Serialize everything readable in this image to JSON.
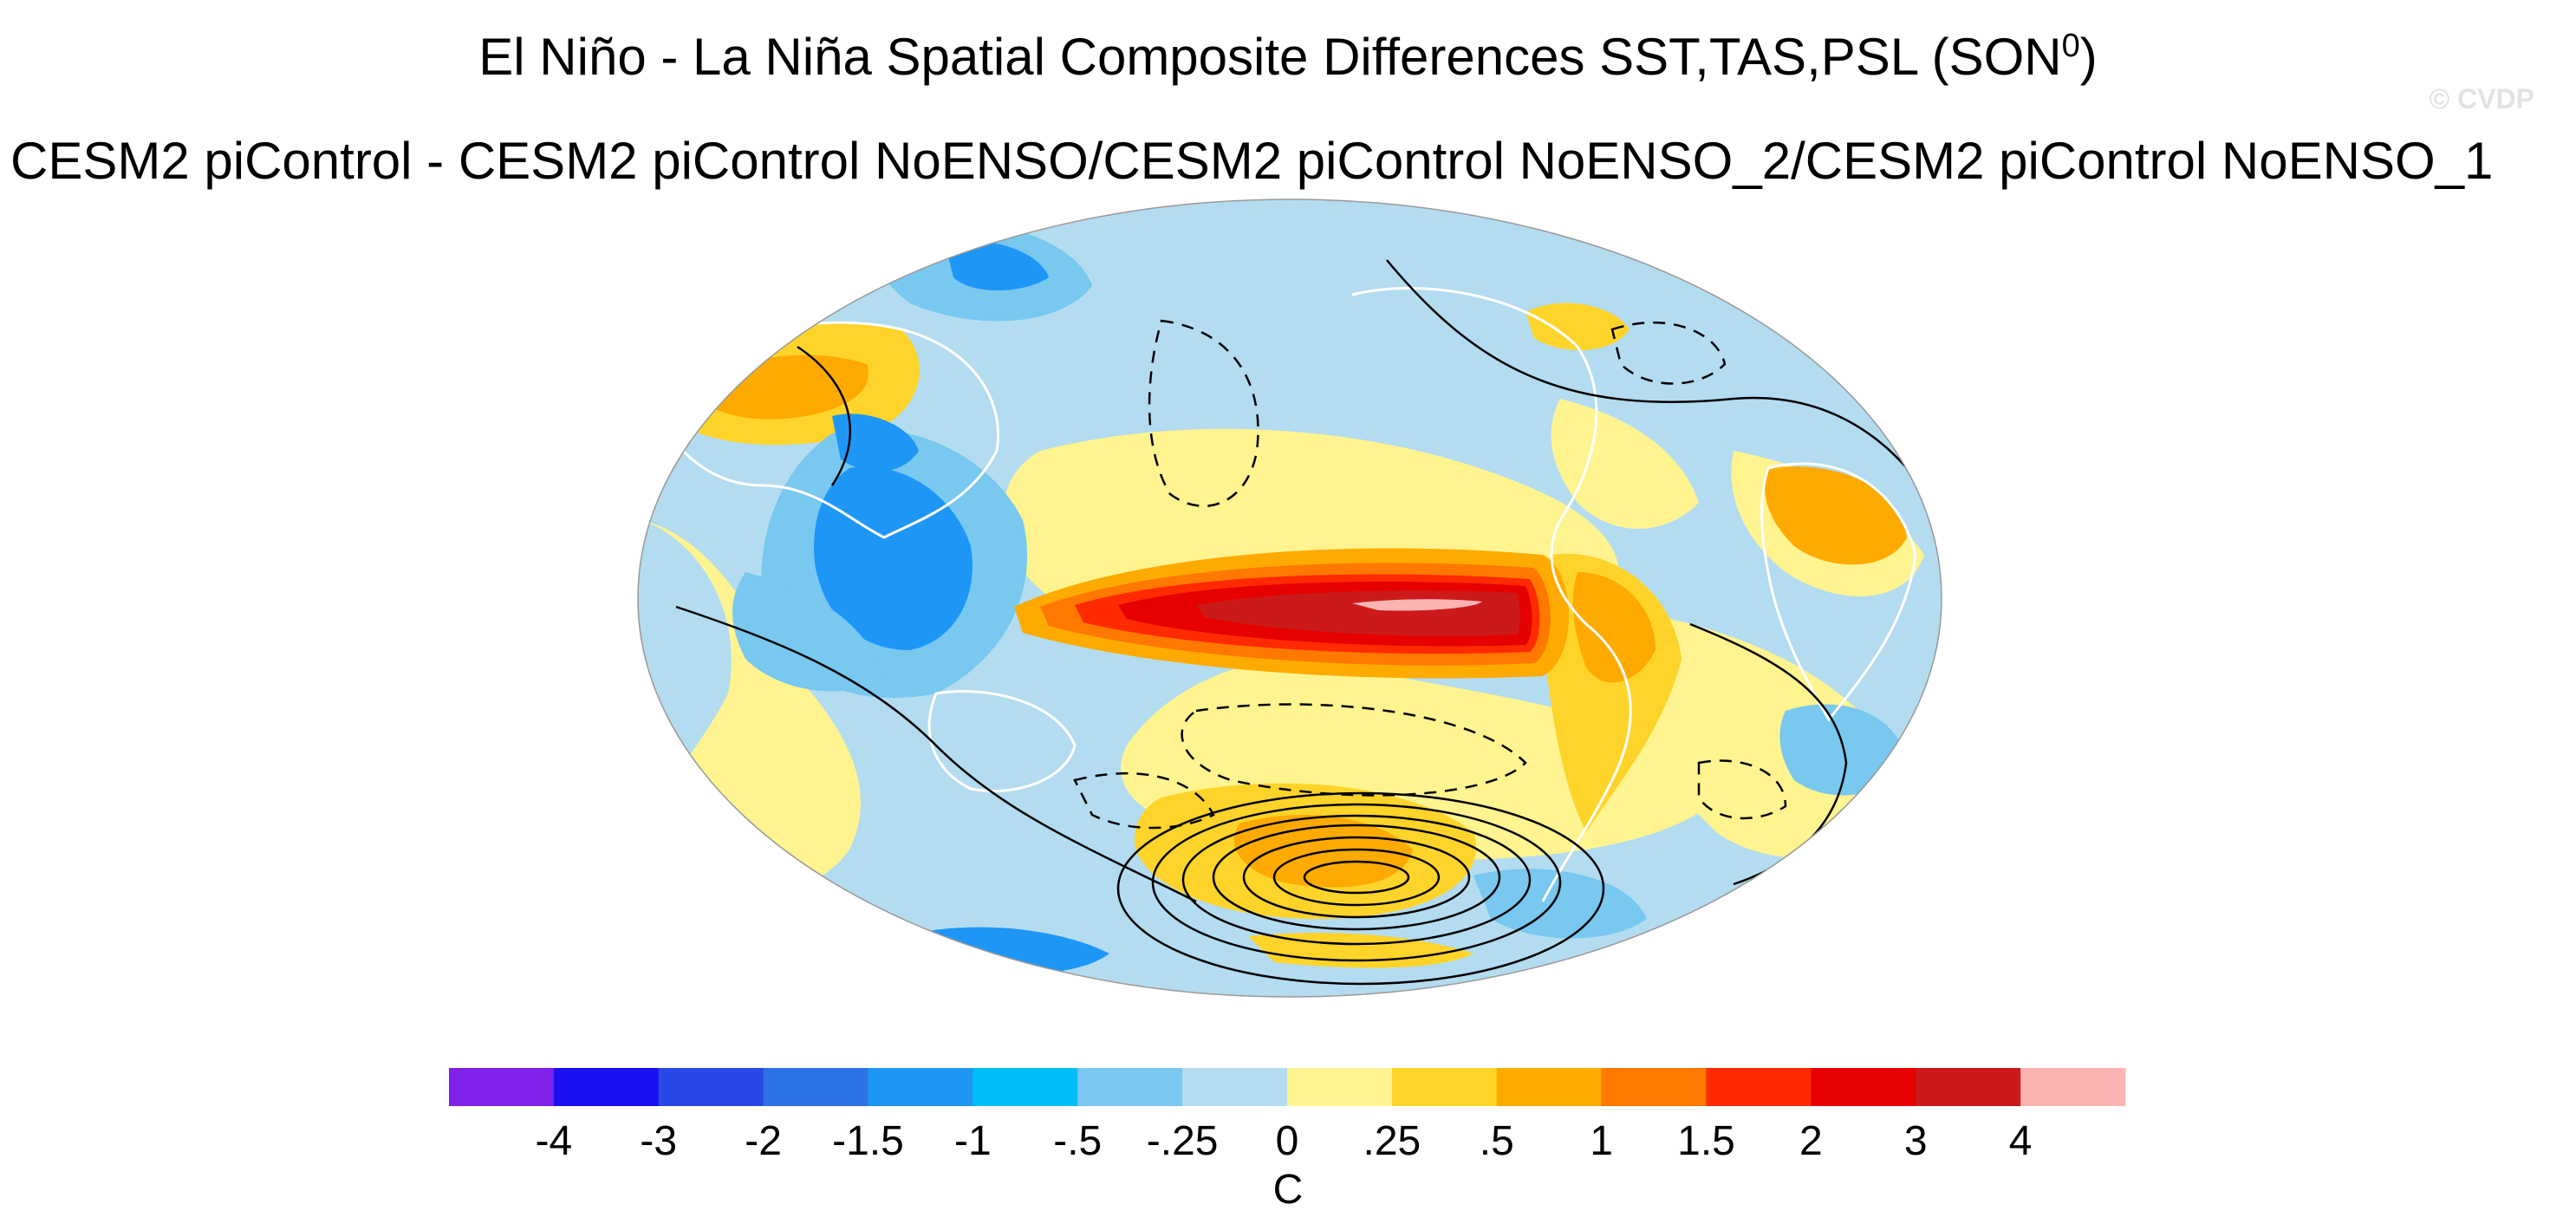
{
  "title": "El Niño - La Niña Spatial Composite Differences SST,TAS,PSL (SON",
  "title_superscript": "0",
  "title_close": ")",
  "subtitle": "CESM2 piControl - CESM2 piControl NoENSO/CESM2 piControl NoENSO_2/CESM2 piControl NoENSO_1",
  "watermark": "© CVDP",
  "colors": {
    "ocean_base": "#b4dcf0",
    "land_outline": "#ffffff",
    "contour": "#000000"
  },
  "colorbar": {
    "unit": "C",
    "labels": [
      "-4",
      "-3",
      "-2",
      "-1.5",
      "-1",
      "-.5",
      "-.25",
      "0",
      ".25",
      ".5",
      "1",
      "1.5",
      "2",
      "3",
      "4"
    ],
    "colors": [
      "#8020e8",
      "#1a10f0",
      "#2a48e6",
      "#2e72e8",
      "#1e96f6",
      "#00bff8",
      "#78c8f0",
      "#b4dcf0",
      "#fff490",
      "#ffd42a",
      "#ffaa00",
      "#ff7800",
      "#ff2a00",
      "#e60000",
      "#cc1a1a",
      "#ffb4b4"
    ]
  }
}
